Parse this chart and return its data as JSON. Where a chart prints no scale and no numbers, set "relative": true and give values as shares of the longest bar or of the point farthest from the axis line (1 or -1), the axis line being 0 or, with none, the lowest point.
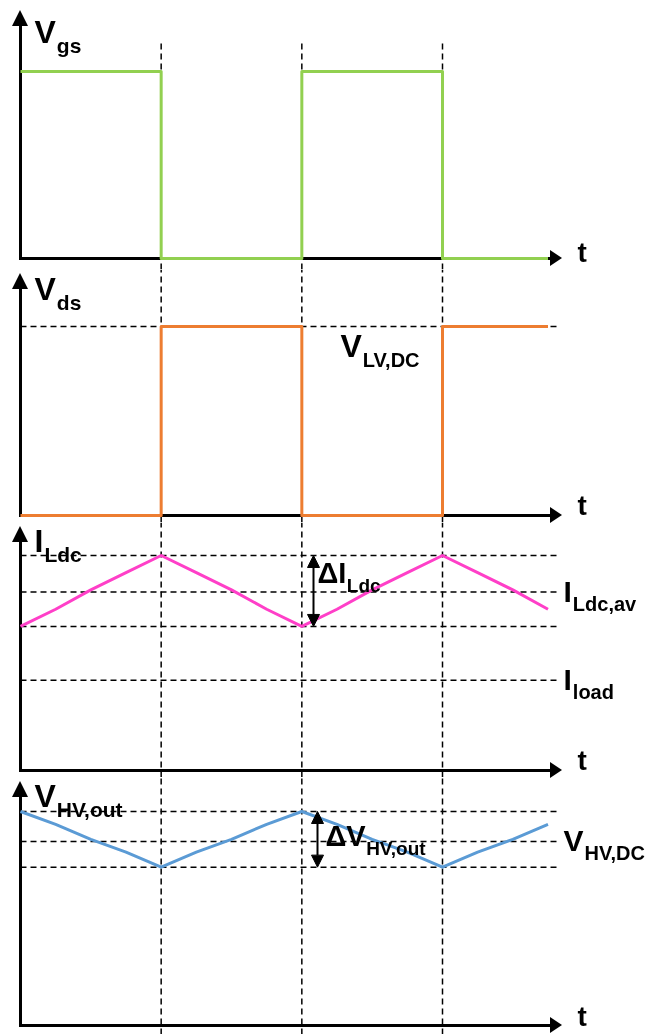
{
  "chart_data": [
    {
      "type": "step",
      "ylabel": "V$_{gs}$",
      "xlabel": "t",
      "relative": true,
      "grid": "x",
      "categories": [
        null,
        null,
        null,
        null,
        null,
        null,
        null,
        null,
        null,
        null,
        null,
        null,
        null,
        null,
        null,
        null
      ],
      "series": [
        {
          "color": "#92d050",
          "values": [
            1,
            1,
            1,
            1,
            0,
            0,
            0,
            0,
            1,
            1,
            1,
            1,
            0,
            0,
            0,
            0
          ]
        }
      ]
    },
    {
      "type": "step",
      "ylabel": "V$_{ds}$",
      "xlabel": "t",
      "relative": true,
      "grid": "x",
      "categories": [
        null,
        null,
        null,
        null,
        null,
        null,
        null,
        null,
        null,
        null,
        null,
        null,
        null,
        null,
        null,
        null
      ],
      "series": [
        {
          "color": "#ed7d31",
          "values": [
            0,
            0,
            0,
            0,
            1,
            1,
            1,
            1,
            0,
            0,
            0,
            0,
            1,
            1,
            1,
            1
          ]
        }
      ],
      "annotations": [
        "V$_{LV,DC}$"
      ]
    },
    {
      "type": "line",
      "ylabel": "I$_{Ldc}$",
      "xlabel": "t",
      "relative": true,
      "grid": "x",
      "categories": [
        null,
        null,
        null,
        null,
        null,
        null,
        null,
        null,
        null,
        null,
        null,
        null,
        null,
        null,
        null,
        null
      ],
      "series": [
        {
          "color": "#ff3fc8",
          "values": [
            0.67,
            0.75,
            0.84,
            0.92,
            1,
            0.92,
            0.84,
            0.75,
            0.67,
            0.75,
            0.84,
            0.92,
            1,
            0.92,
            0.84,
            0.75
          ]
        }
      ],
      "ref_lines": [
        {
          "axis": "y",
          "value": 0.83,
          "label": "I$_{Ldc,av}$"
        },
        {
          "axis": "y",
          "value": 0.67
        },
        {
          "axis": "y",
          "value": 0.42,
          "label": "I$_{load}$"
        }
      ],
      "annotations": [
        "ΔI$_{Ldc}$"
      ]
    },
    {
      "type": "line",
      "ylabel": "V$_{HV,out}$",
      "xlabel": "t",
      "relative": true,
      "grid": "x",
      "categories": [
        null,
        null,
        null,
        null,
        null,
        null,
        null,
        null,
        null,
        null,
        null,
        null,
        null,
        null,
        null,
        null
      ],
      "series": [
        {
          "color": "#5b9bd5",
          "values": [
            1,
            0.94,
            0.87,
            0.81,
            0.74,
            0.81,
            0.87,
            0.94,
            1,
            0.94,
            0.87,
            0.81,
            0.74,
            0.81,
            0.87,
            0.94
          ]
        }
      ],
      "ref_lines": [
        {
          "axis": "y",
          "value": 0.86,
          "label": "V$_{HV,DC}$"
        },
        {
          "axis": "y",
          "value": 0.74
        }
      ],
      "annotations": [
        "ΔV$_{HV,out}$"
      ]
    }
  ]
}
